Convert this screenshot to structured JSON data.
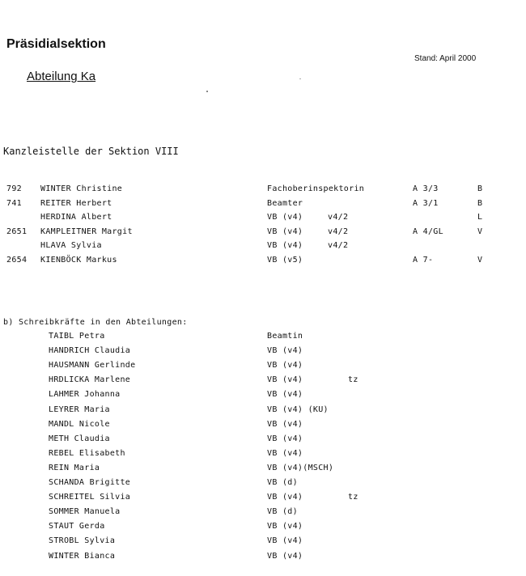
{
  "header": {
    "title": "Präsidialsektion",
    "stand": "Stand: April 2000",
    "abteilung": "Abteilung Ka"
  },
  "section_a": {
    "heading": "Kanzleistelle der Sektion VIII",
    "rows": [
      {
        "nr": "792",
        "name": "WINTER Christine",
        "verwendung": "Fachoberinspektorin",
        "entlohnung": "",
        "einstufung": "A 3/3",
        "code": "B"
      },
      {
        "nr": "741",
        "name": "REITER Herbert",
        "verwendung": "Beamter",
        "entlohnung": "",
        "einstufung": "A 3/1",
        "code": "B"
      },
      {
        "nr": "",
        "name": "HERDINA Albert",
        "verwendung": "VB (v4)",
        "entlohnung": "v4/2",
        "einstufung": "",
        "code": "L"
      },
      {
        "nr": "2651",
        "name": "KAMPLEITNER Margit",
        "verwendung": "VB (v4)",
        "entlohnung": "v4/2",
        "einstufung": "A 4/GL",
        "code": "V"
      },
      {
        "nr": "",
        "name": "HLAVA Sylvia",
        "verwendung": "VB (v4)",
        "entlohnung": "v4/2",
        "einstufung": "",
        "code": ""
      },
      {
        "nr": "2654",
        "name": "KIENBÖCK Markus",
        "verwendung": "VB (v5)",
        "entlohnung": "",
        "einstufung": "A 7-",
        "code": "V"
      }
    ]
  },
  "section_b": {
    "heading": "b) Schreibkräfte in den Abteilungen:",
    "rows": [
      {
        "name": "TAIBL Petra",
        "verwendung": "Beamtin",
        "note": ""
      },
      {
        "name": "HANDRICH Claudia",
        "verwendung": "VB (v4)",
        "note": ""
      },
      {
        "name": "HAUSMANN Gerlinde",
        "verwendung": "VB (v4)",
        "note": ""
      },
      {
        "name": "HRDLICKA Marlene",
        "verwendung": "VB (v4)",
        "note": "tz"
      },
      {
        "name": "LAHMER Johanna",
        "verwendung": "VB (v4)",
        "note": ""
      },
      {
        "name": "LEYRER Maria",
        "verwendung": "VB (v4) (KU)",
        "note": ""
      },
      {
        "name": "MANDL Nicole",
        "verwendung": "VB (v4)",
        "note": ""
      },
      {
        "name": "METH Claudia",
        "verwendung": "VB (v4)",
        "note": ""
      },
      {
        "name": "REBEL Elisabeth",
        "verwendung": "VB (v4)",
        "note": ""
      },
      {
        "name": "REIN Maria",
        "verwendung": "VB (v4)(MSCH)",
        "note": ""
      },
      {
        "name": "SCHANDA Brigitte",
        "verwendung": "VB (d)",
        "note": ""
      },
      {
        "name": "SCHREITEL Silvia",
        "verwendung": "VB (v4)",
        "note": "tz"
      },
      {
        "name": "SOMMER Manuela",
        "verwendung": "VB (d)",
        "note": ""
      },
      {
        "name": "STAUT Gerda",
        "verwendung": "VB (v4)",
        "note": ""
      },
      {
        "name": "STROBL Sylvia",
        "verwendung": "VB (v4)",
        "note": ""
      },
      {
        "name": "WINTER Bianca",
        "verwendung": "VB (v4)",
        "note": ""
      }
    ]
  }
}
